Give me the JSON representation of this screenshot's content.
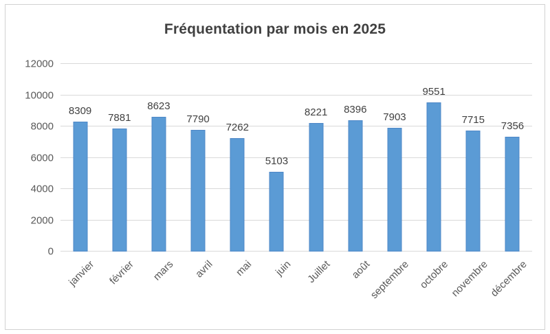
{
  "title": "Fréquentation par mois en 2025",
  "colors": {
    "bar_fill": "#5b9bd5",
    "bar_border": "#4d87c7",
    "gridline": "#d9d9d9",
    "axis_text": "#595959",
    "value_label_text": "#404040",
    "title_text": "#404040",
    "frame_border": "#d2d2d2"
  },
  "chart_data": {
    "type": "bar",
    "title": "Fréquentation par mois en 2025",
    "categories": [
      "janvier",
      "février",
      "mars",
      "avril",
      "mai",
      "juin",
      "Juillet",
      "août",
      "septembre",
      "octobre",
      "novembre",
      "décembre"
    ],
    "values": [
      8309,
      7881,
      8623,
      7790,
      7262,
      5103,
      8221,
      8396,
      7903,
      9551,
      7715,
      7356
    ],
    "xlabel": "",
    "ylabel": "",
    "ylim": [
      0,
      12000
    ],
    "ytick_step": 2000,
    "ytick_labels": [
      "0",
      "2000",
      "4000",
      "6000",
      "8000",
      "10000",
      "12000"
    ],
    "grid": true,
    "legend": "none",
    "data_labels": true,
    "x_tick_rotation_deg": 45
  }
}
